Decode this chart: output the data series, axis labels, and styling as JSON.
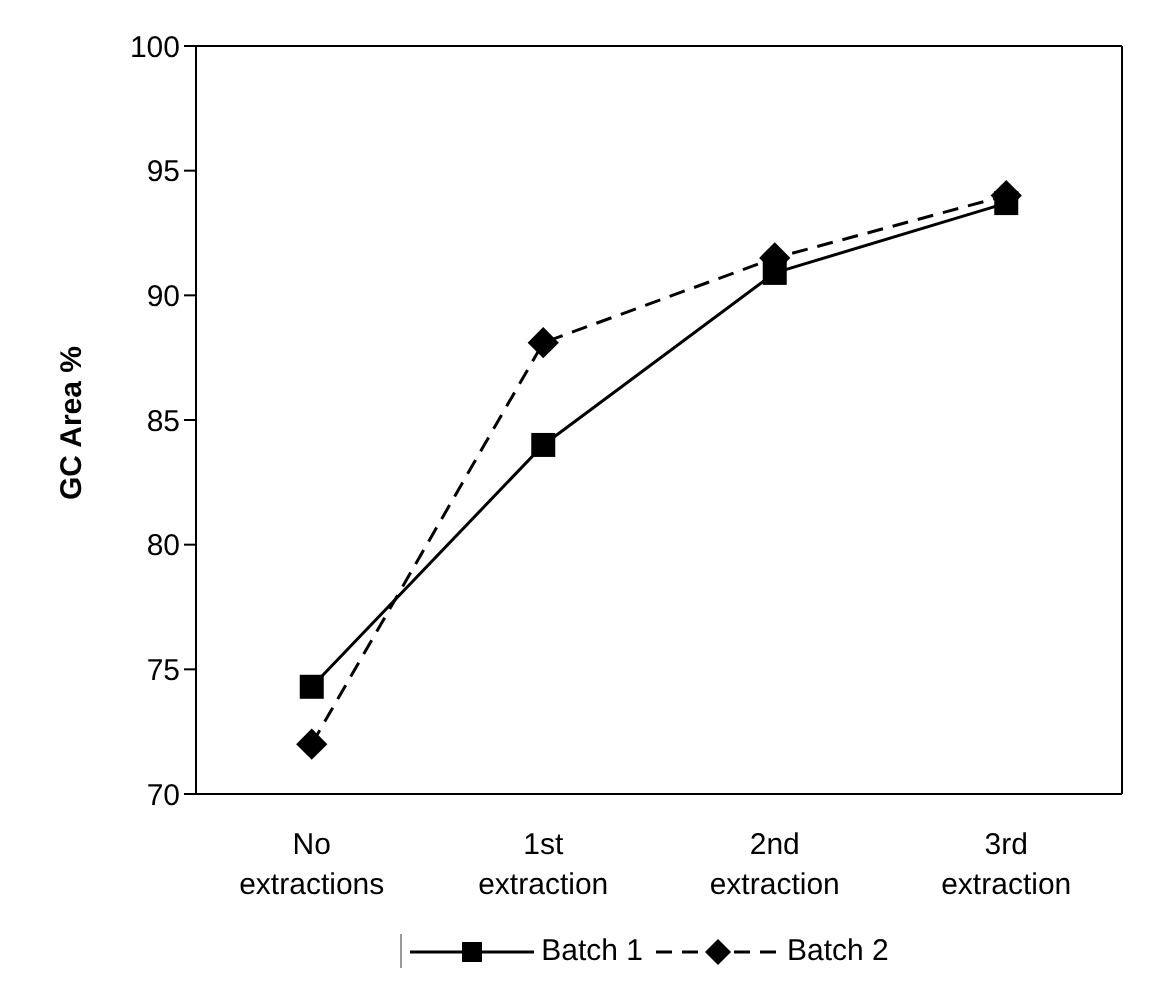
{
  "chart_data": {
    "type": "line",
    "ylabel": "GC Area %",
    "categories": [
      "No extractions",
      "1st extraction",
      "2nd extraction",
      "3rd extraction"
    ],
    "series": [
      {
        "name": "Batch 1",
        "color": "#000000",
        "values": [
          74.3,
          84.0,
          90.9,
          93.7
        ],
        "marker": "square",
        "line_style": "solid"
      },
      {
        "name": "Batch 2",
        "color": "#000000",
        "values": [
          72.0,
          88.1,
          91.5,
          94.0
        ],
        "marker": "diamond",
        "line_style": "dashed"
      }
    ],
    "ylim": [
      70,
      100
    ],
    "yticks": [
      70,
      75,
      80,
      85,
      90,
      95,
      100
    ],
    "grid": false,
    "legend": "bottom"
  }
}
